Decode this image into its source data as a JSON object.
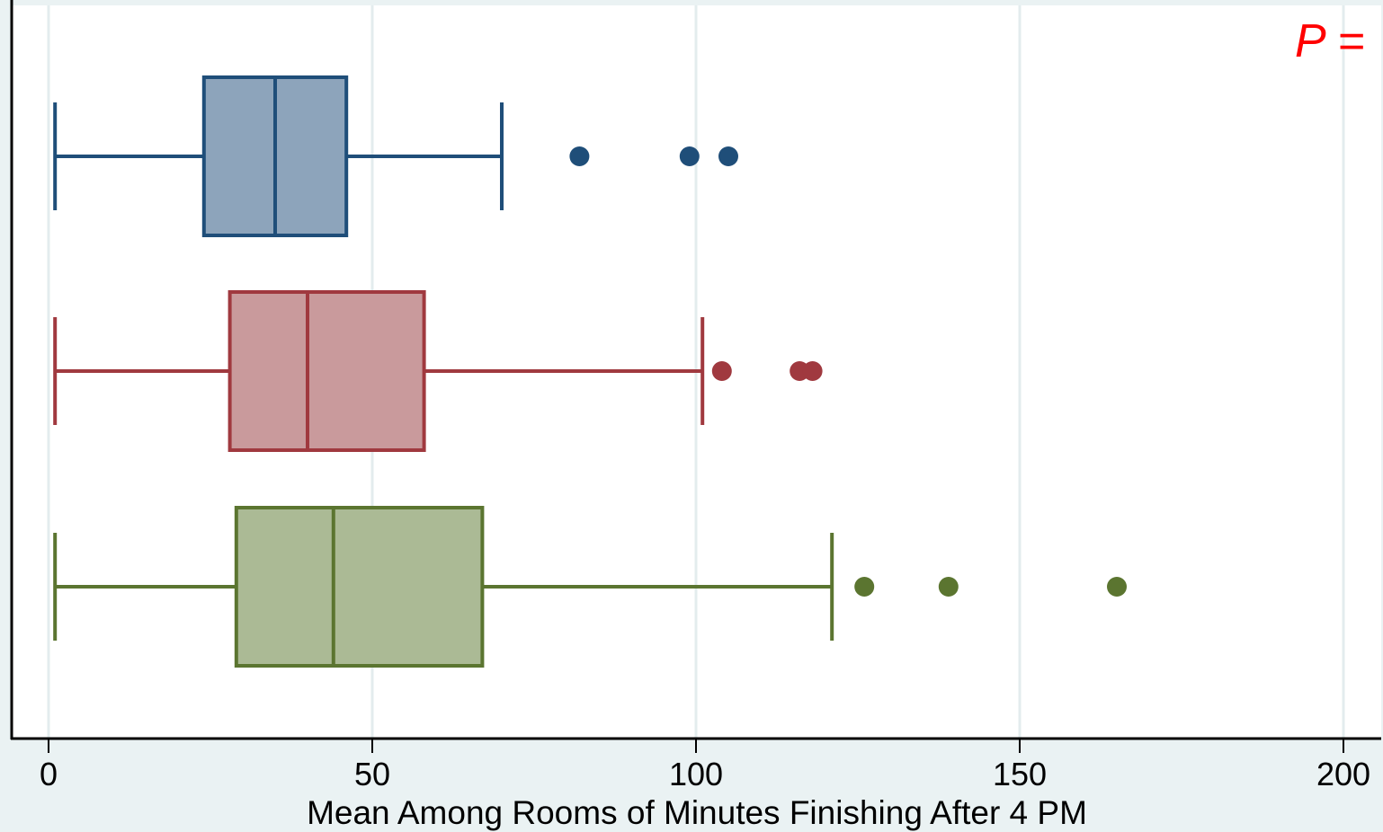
{
  "chart_data": {
    "type": "boxplot",
    "orientation": "horizontal",
    "xlabel": "Mean Among Rooms of Minutes Finishing After 4 PM",
    "ylabel": "",
    "xlim": [
      0,
      200
    ],
    "xticks": [
      "0",
      "50",
      "100",
      "150",
      "200"
    ],
    "grid": true,
    "annotation": "P =",
    "annotation_color": "#ff0000",
    "series": [
      {
        "color": "#1f4e79",
        "fill": "#8da4bb",
        "whisker_low": 1,
        "q1": 24,
        "median": 35,
        "q3": 46,
        "whisker_high": 70,
        "outliers": [
          82,
          99,
          105
        ]
      },
      {
        "color": "#a0393f",
        "fill": "#c99a9c",
        "whisker_low": 1,
        "q1": 28,
        "median": 40,
        "q3": 58,
        "whisker_high": 101,
        "outliers": [
          104,
          116,
          118
        ]
      },
      {
        "color": "#5b7530",
        "fill": "#abba95",
        "whisker_low": 1,
        "q1": 29,
        "median": 44,
        "q3": 67,
        "whisker_high": 121,
        "outliers": [
          126,
          139,
          165
        ]
      }
    ]
  }
}
